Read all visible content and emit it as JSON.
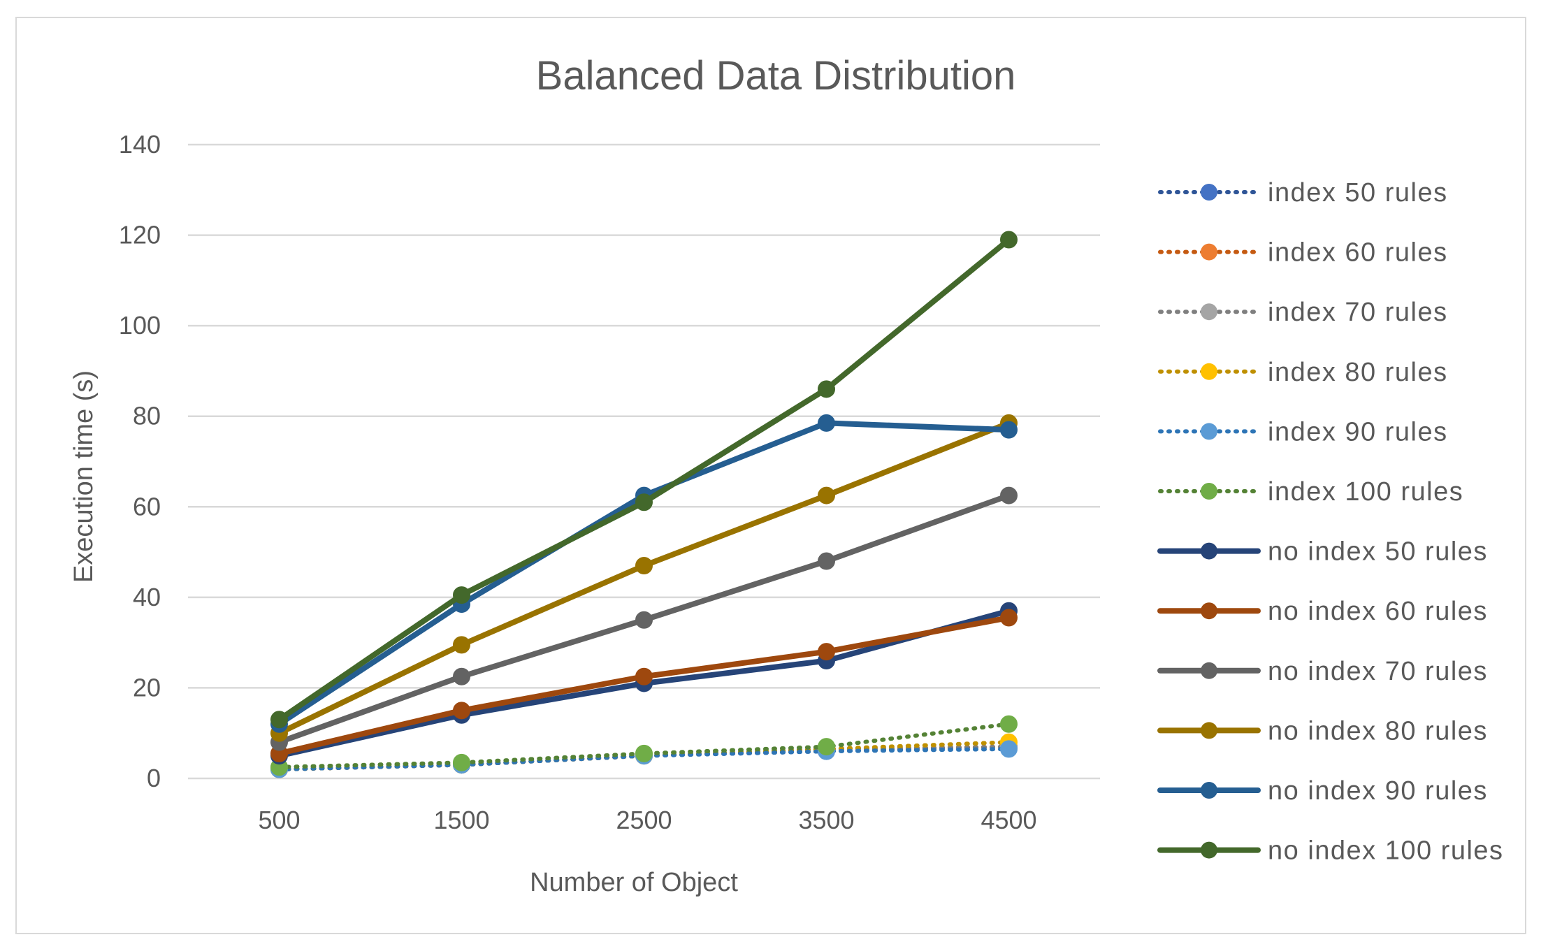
{
  "chart_data": {
    "type": "line",
    "title": "Balanced Data Distribution",
    "xlabel": "Number of Object",
    "ylabel": "Execution time (s)",
    "categories": [
      "500",
      "1500",
      "2500",
      "3500",
      "4500"
    ],
    "ylim": [
      0,
      140
    ],
    "yticks": [
      0,
      20,
      40,
      60,
      80,
      100,
      120,
      140
    ],
    "grid": true,
    "legend_position": "right",
    "series": [
      {
        "name": "index 50 rules",
        "values": [
          2,
          3,
          5,
          6,
          7
        ],
        "color": "#4472c4",
        "dark": "#2f5597",
        "style": "dotted"
      },
      {
        "name": "index 60 rules",
        "values": [
          2,
          3,
          5,
          6.5,
          7
        ],
        "color": "#ed7d31",
        "dark": "#c55a11",
        "style": "dotted"
      },
      {
        "name": "index 70 rules",
        "values": [
          2,
          3,
          5,
          6.5,
          7
        ],
        "color": "#a5a5a5",
        "dark": "#7f7f7f",
        "style": "dotted"
      },
      {
        "name": "index 80 rules",
        "values": [
          2,
          3,
          5,
          6.5,
          8
        ],
        "color": "#ffc000",
        "dark": "#bf9000",
        "style": "dotted"
      },
      {
        "name": "index 90 rules",
        "values": [
          2,
          3,
          5,
          6,
          6.5
        ],
        "color": "#5b9bd5",
        "dark": "#2e75b6",
        "style": "dotted"
      },
      {
        "name": "index 100 rules",
        "values": [
          2.5,
          3.5,
          5.5,
          7,
          12
        ],
        "color": "#70ad47",
        "dark": "#548235",
        "style": "dotted"
      },
      {
        "name": "no index 50 rules",
        "values": [
          5,
          14,
          21,
          26,
          37
        ],
        "color": "#264478",
        "dark": "#264478",
        "style": "solid"
      },
      {
        "name": "no index 60 rules",
        "values": [
          5.5,
          15,
          22.5,
          28,
          35.5
        ],
        "color": "#9e480e",
        "dark": "#9e480e",
        "style": "solid"
      },
      {
        "name": "no index 70 rules",
        "values": [
          8,
          22.5,
          35,
          48,
          62.5
        ],
        "color": "#636363",
        "dark": "#636363",
        "style": "solid"
      },
      {
        "name": "no index 80 rules",
        "values": [
          10,
          29.5,
          47,
          62.5,
          78.5
        ],
        "color": "#997300",
        "dark": "#997300",
        "style": "solid"
      },
      {
        "name": "no index 90 rules",
        "values": [
          12,
          38.5,
          62.5,
          78.5,
          77
        ],
        "color": "#255e91",
        "dark": "#255e91",
        "style": "solid"
      },
      {
        "name": "no index 100 rules",
        "values": [
          13,
          40.5,
          61,
          86,
          119
        ],
        "color": "#43682b",
        "dark": "#43682b",
        "style": "solid"
      }
    ]
  }
}
